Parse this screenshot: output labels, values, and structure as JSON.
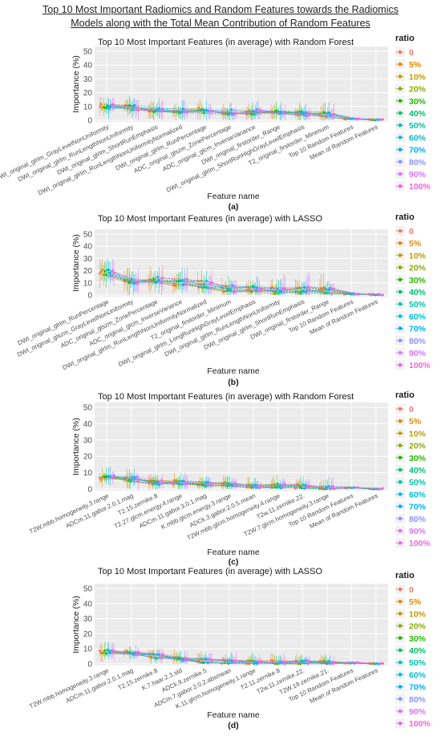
{
  "figure_title_lines": [
    "Top 10 Most Important Radiomics and Random Features towards the Radiomics",
    "Models along with the Total Mean Contribution of Random Features"
  ],
  "legend": {
    "title": "ratio",
    "labels": [
      "0",
      "5%",
      "10%",
      "20%",
      "30%",
      "40%",
      "50%",
      "60%",
      "70%",
      "80%",
      "90%",
      "100%"
    ],
    "colors": [
      "#F8766D",
      "#E18A00",
      "#BE9C00",
      "#8CAB00",
      "#24B700",
      "#00BE70",
      "#00C1AB",
      "#00BBDA",
      "#00ACFC",
      "#8B93FF",
      "#D575FE",
      "#F962DD"
    ]
  },
  "chart_data": [
    {
      "type": "line",
      "title": "Top 10 Most Important Features (in average) with Random Forest",
      "xlabel": "Feature name",
      "ylabel": "Importance (%)",
      "caption": "(a)",
      "ylim": [
        0,
        50
      ],
      "yticks": [
        0,
        10,
        20,
        30,
        40,
        50
      ],
      "grid": true,
      "legend_position": "right",
      "categories": [
        "DWI_original_glrlm_GrayLevelNonUniformity",
        "DWI_original_glrlm_RunLengthNonUniformity",
        "DWI_original_glrlm_ShortRunEmphasis",
        "DWI_original_glrlm_RunLengthNonUniformityNormalized",
        "DWI_original_glrlm_RunPercentage",
        "ADC_original_glszm_ZonePercentage",
        "ADC_original_glcm_InverseVariance",
        "DWI_original_firstorder_Range",
        "DWI_original_glrlm_ShortRunHighGrayLevelEmphasis",
        "T2_original_firstorder_Minimum",
        "Top 10 Random Features",
        "Mean of Random Features"
      ],
      "values_mean": [
        10,
        9,
        8,
        7,
        7,
        6,
        6,
        5,
        5,
        4,
        1,
        0.3
      ],
      "spread": 4
    },
    {
      "type": "line",
      "title": "Top 10 Most Important Features (in average) with LASSO",
      "xlabel": "Feature name",
      "ylabel": "Importance (%)",
      "caption": "(b)",
      "ylim": [
        0,
        50
      ],
      "yticks": [
        0,
        10,
        20,
        30,
        40,
        50
      ],
      "grid": true,
      "legend_position": "right",
      "categories": [
        "DWI_original_glrlm_RunPercentage",
        "DWI_original_glszm_GrayLevelNonUniformity",
        "ADC_original_glszm_ZonePercentage",
        "ADC_original_glcm_InverseVariance",
        "DWI_original_glrlm_RunLengthNonUniformityNormalized",
        "T2_original_firstorder_Minimum",
        "DWI_original_glrlm_LongRunHighGrayLevelEmphasis",
        "DWI_original_glrlm_RunLengthNonUniformity",
        "DWI_original_glrlm_ShortRunEmphasis",
        "DWI_original_firstorder_Range",
        "Top 10 Random Features",
        "Mean of Random Features"
      ],
      "values_mean": [
        19,
        12,
        12,
        10,
        9,
        5,
        5,
        4,
        4,
        3,
        1,
        0.3
      ],
      "spread": 6
    },
    {
      "type": "line",
      "title": "Top 10 Most Important Features (in average) with Random Forest",
      "xlabel": "Feature name",
      "ylabel": "Importance (%)",
      "caption": "(c)",
      "ylim": [
        0,
        50
      ],
      "yticks": [
        0,
        10,
        20,
        30,
        40,
        50
      ],
      "grid": true,
      "legend_position": "right",
      "categories": [
        "T2W.mbb.homogeneity.3.range",
        "ADCm.11.gabor.2.0.1.mag",
        "T2.15.zernike.8",
        "T2.27.glcm.energy.4.range",
        "ADCm.11.gabor.3.0.1.mag",
        "K.mbb.glcm.energy.3.range",
        "ADCk.3.gabor.2.0.5.mean",
        "T2W.mbb.glcm.homogeneity.4.range",
        "T2w.11.zernike.22.",
        "T2W.7.glcm.homogeneity.3.range",
        "Top 10 Random Features",
        "Mean of Random Features"
      ],
      "values_mean": [
        7,
        6,
        4,
        4,
        3,
        3,
        2,
        2,
        1.5,
        1,
        0.8,
        0.2
      ],
      "spread": 3
    },
    {
      "type": "line",
      "title": "Top 10 Most Important Features (in average) with LASSO",
      "xlabel": "Feature name",
      "ylabel": "Importance (%)",
      "caption": "(d)",
      "ylim": [
        0,
        50
      ],
      "yticks": [
        0,
        10,
        20,
        30,
        40,
        50
      ],
      "grid": true,
      "legend_position": "right",
      "categories": [
        "T2W.mbb.homogeneity.3.range",
        "ADCm.11.gabor.2.0.1.mag",
        "T2.15.zernike.8",
        "K.7.haar.2.3.std",
        "ADCk.9.zernike.5",
        "ADCm.7.gabor.2.0.2.absmean",
        "K.11.glcm.homogeneity.1.range",
        "T2.11.zernike.8",
        "T2w.11.zernike.22.",
        "T2W.19.zernike.21.",
        "Top 10 Random Features",
        "Mean of Random Features"
      ],
      "values_mean": [
        8,
        7,
        5,
        3,
        2,
        1.5,
        1,
        1,
        0.8,
        0.8,
        0.6,
        0.2
      ],
      "spread": 3
    }
  ]
}
